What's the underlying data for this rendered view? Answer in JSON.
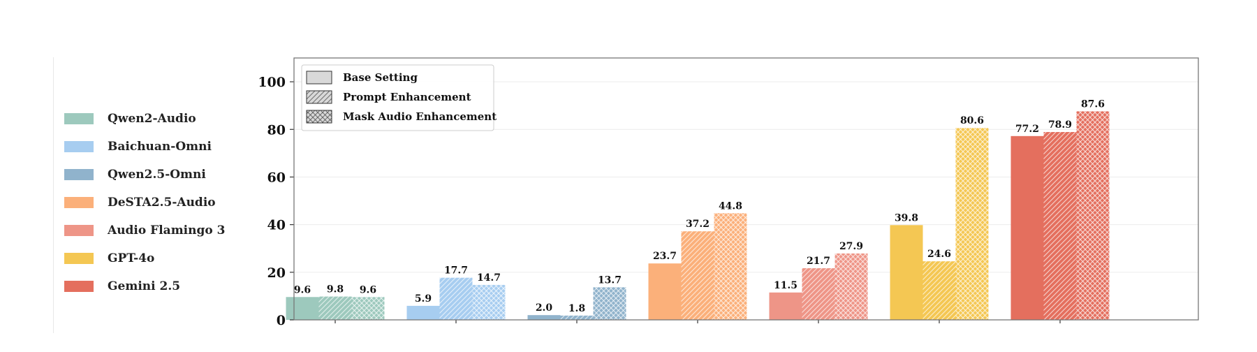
{
  "chart_data": {
    "type": "bar",
    "categories": [
      "Qwen2-Audio",
      "Baichuan-Omni",
      "Qwen2.5-Omni",
      "DeSTA2.5-Audio",
      "Audio Flamingo 3",
      "GPT-4o",
      "Gemini 2.5"
    ],
    "colors": [
      "#9dc9bd",
      "#a7cdf0",
      "#90b3cc",
      "#fbb07a",
      "#ee9587",
      "#f4c753",
      "#e46f5e"
    ],
    "series": [
      {
        "name": "Base Setting",
        "pattern": "solid",
        "values": [
          9.6,
          5.9,
          2.0,
          23.7,
          11.5,
          39.8,
          77.2
        ]
      },
      {
        "name": "Prompt Enhancement",
        "pattern": "diagonal-hatch",
        "values": [
          9.8,
          17.7,
          1.8,
          37.2,
          21.7,
          24.6,
          78.9
        ]
      },
      {
        "name": "Mask Audio Enhancement",
        "pattern": "cross-hatch",
        "values": [
          9.6,
          14.7,
          13.7,
          44.8,
          27.9,
          80.6,
          87.6
        ]
      }
    ],
    "ylim": [
      0,
      110
    ],
    "yticks": [
      "0",
      "20",
      "40",
      "60",
      "80",
      "100"
    ],
    "grid": true,
    "series_legend_position": "top-left",
    "model_legend_position": "left"
  }
}
